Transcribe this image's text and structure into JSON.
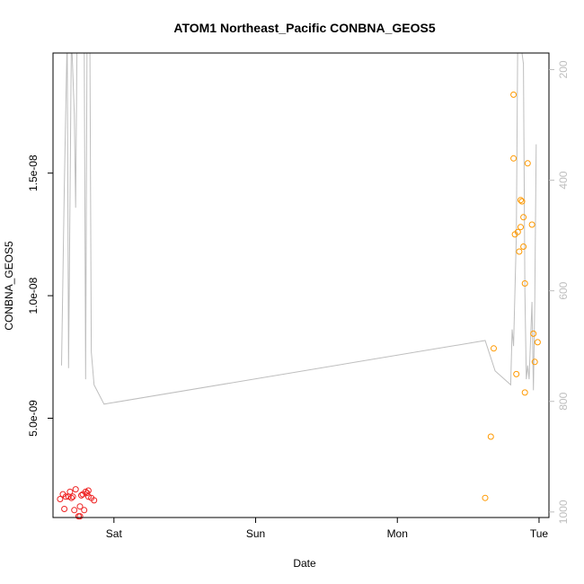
{
  "chart_data": {
    "type": "scatter",
    "title": "ATOM1 Northeast_Pacific CONBNA_GEOS5",
    "xlabel": "Date",
    "ylabel": "CONBNA_GEOS5",
    "x_ticks": [
      "Sat",
      "Sun",
      "Mon",
      "Tue"
    ],
    "x_tick_values": [
      0,
      1,
      2,
      3
    ],
    "xlim": [
      -0.43,
      3.07
    ],
    "y_ticks": [
      "5.0e-09",
      "1.0e-08",
      "1.5e-08"
    ],
    "y_tick_values": [
      5e-09,
      1e-08,
      1.5e-08
    ],
    "ylim": [
      9.5e-10,
      1.99e-08
    ],
    "right_axis": {
      "ticks": [
        "200",
        "400",
        "600",
        "800",
        "1000"
      ],
      "tick_values": [
        200,
        400,
        600,
        800,
        1000
      ],
      "lim": [
        1010,
        170
      ],
      "color": "#bebebe"
    },
    "series": [
      {
        "color": "#ee2222",
        "points": [
          [
            -0.38,
            1.7e-09
          ],
          [
            -0.36,
            1.9e-09
          ],
          [
            -0.35,
            1.3e-09
          ],
          [
            -0.34,
            1.8e-09
          ],
          [
            -0.32,
            1.8e-09
          ],
          [
            -0.31,
            2e-09
          ],
          [
            -0.3,
            1.75e-09
          ],
          [
            -0.29,
            1.8e-09
          ],
          [
            -0.28,
            1.25e-09
          ],
          [
            -0.27,
            2.1e-09
          ],
          [
            -0.25,
            1e-09
          ],
          [
            -0.24,
            1e-09
          ],
          [
            -0.24,
            1.4e-09
          ],
          [
            -0.23,
            1.85e-09
          ],
          [
            -0.22,
            1.9e-09
          ],
          [
            -0.21,
            1.25e-09
          ],
          [
            -0.2,
            2e-09
          ],
          [
            -0.19,
            1.95e-09
          ],
          [
            -0.18,
            1.8e-09
          ],
          [
            -0.18,
            2.05e-09
          ],
          [
            -0.16,
            1.75e-09
          ],
          [
            -0.14,
            1.65e-09
          ]
        ]
      },
      {
        "color": "#ff9900",
        "points": [
          [
            2.62,
            1.75e-09
          ],
          [
            2.66,
            4.25e-09
          ],
          [
            2.68,
            7.85e-09
          ],
          [
            2.82,
            1.56e-08
          ],
          [
            2.82,
            1.82e-08
          ],
          [
            2.83,
            1.25e-08
          ],
          [
            2.84,
            6.8e-09
          ],
          [
            2.85,
            1.26e-08
          ],
          [
            2.86,
            1.18e-08
          ],
          [
            2.87,
            1.39e-08
          ],
          [
            2.87,
            1.28e-08
          ],
          [
            2.88,
            1.385e-08
          ],
          [
            2.89,
            1.32e-08
          ],
          [
            2.89,
            1.2e-08
          ],
          [
            2.9,
            1.05e-08
          ],
          [
            2.9,
            6.05e-09
          ],
          [
            2.92,
            1.54e-08
          ],
          [
            2.95,
            1.29e-08
          ],
          [
            2.96,
            8.45e-09
          ],
          [
            2.97,
            7.3e-09
          ],
          [
            2.99,
            8.1e-09
          ]
        ]
      }
    ],
    "pressure_line": {
      "color": "#bebebe",
      "points": [
        [
          -0.37,
          735
        ],
        [
          -0.35,
          410
        ],
        [
          -0.33,
          135
        ],
        [
          -0.32,
          740
        ],
        [
          -0.3,
          135
        ],
        [
          -0.28,
          280
        ],
        [
          -0.27,
          450
        ],
        [
          -0.26,
          135
        ],
        [
          -0.25,
          135
        ],
        [
          -0.24,
          130
        ],
        [
          -0.23,
          120
        ],
        [
          -0.22,
          110
        ],
        [
          -0.21,
          135
        ],
        [
          -0.2,
          760
        ],
        [
          -0.19,
          135
        ],
        [
          -0.18,
          130
        ],
        [
          -0.17,
          135
        ],
        [
          -0.16,
          710
        ],
        [
          -0.14,
          770
        ],
        [
          -0.07,
          805
        ],
        [
          2.62,
          690
        ],
        [
          2.69,
          745
        ],
        [
          2.8,
          770
        ],
        [
          2.81,
          670
        ],
        [
          2.82,
          700
        ],
        [
          2.84,
          500
        ],
        [
          2.85,
          130
        ],
        [
          2.86,
          140
        ],
        [
          2.87,
          125
        ],
        [
          2.88,
          170
        ],
        [
          2.89,
          190
        ],
        [
          2.9,
          600
        ],
        [
          2.91,
          760
        ],
        [
          2.92,
          735
        ],
        [
          2.93,
          760
        ],
        [
          2.94,
          690
        ],
        [
          2.95,
          620
        ],
        [
          2.96,
          780
        ],
        [
          2.97,
          620
        ],
        [
          2.98,
          335
        ]
      ]
    }
  }
}
